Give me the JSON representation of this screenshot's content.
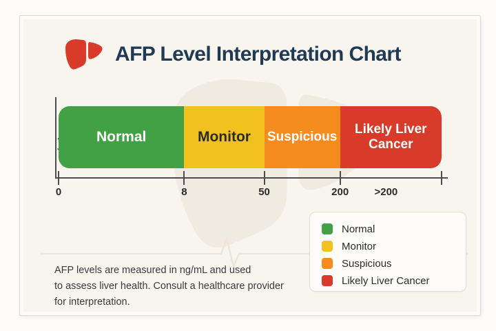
{
  "header": {
    "title": "AFP Level Interpretation Chart",
    "title_color": "#1f3a55",
    "icon_color": "#d93b2b"
  },
  "chart_data": {
    "type": "bar",
    "subtype": "horizontal-segmented-range-scale",
    "title": "AFP Level Interpretation Chart",
    "unit_label": "ng/mL",
    "xlabel": "ng/mL",
    "grid": false,
    "legend_position": "bottom-right",
    "segments": [
      {
        "label": "Normal",
        "range": "0-8",
        "start": 0,
        "end": 8,
        "color": "#43a145",
        "label_color": "#ffffff",
        "width_pct": 32.8,
        "font_px": 21
      },
      {
        "label": "Monitor",
        "range": "8-50",
        "start": 8,
        "end": 50,
        "color": "#f1c21f",
        "label_color": "#2b2b2b",
        "width_pct": 20.9,
        "font_px": 21
      },
      {
        "label": "Suspicious",
        "range": "50-200",
        "start": 50,
        "end": 200,
        "color": "#f68b1f",
        "label_color": "#ffffff",
        "width_pct": 19.8,
        "font_px": 19
      },
      {
        "label": "Likely Liver Cancer",
        "range": ">200",
        "start": 200,
        "end": null,
        "color": "#d93b2b",
        "label_color": "#ffffff",
        "width_pct": 26.5,
        "font_px": 19
      }
    ],
    "axis": {
      "tick_positions_pct": [
        0,
        32.8,
        53.7,
        73.5,
        100
      ],
      "tick_labels": [
        {
          "text": "0",
          "pos_pct": 0
        },
        {
          "text": "8",
          "pos_pct": 32.8
        },
        {
          "text": "50",
          "pos_pct": 53.7
        },
        {
          "text": "200",
          "pos_pct": 73.5
        },
        {
          "text": ">200",
          "pos_pct": 85.5
        }
      ]
    }
  },
  "legend": {
    "items": [
      {
        "label": "Normal",
        "color": "#43a145"
      },
      {
        "label": "Monitor",
        "color": "#f1c21f"
      },
      {
        "label": "Suspicious",
        "color": "#f68b1f"
      },
      {
        "label": "Likely Liver Cancer",
        "color": "#d93b2b"
      }
    ]
  },
  "footer": {
    "lines": [
      "AFP levels are measured in ng/mL and used",
      "to assess liver health. Consult a healthcare provider",
      "for interpretation."
    ]
  }
}
